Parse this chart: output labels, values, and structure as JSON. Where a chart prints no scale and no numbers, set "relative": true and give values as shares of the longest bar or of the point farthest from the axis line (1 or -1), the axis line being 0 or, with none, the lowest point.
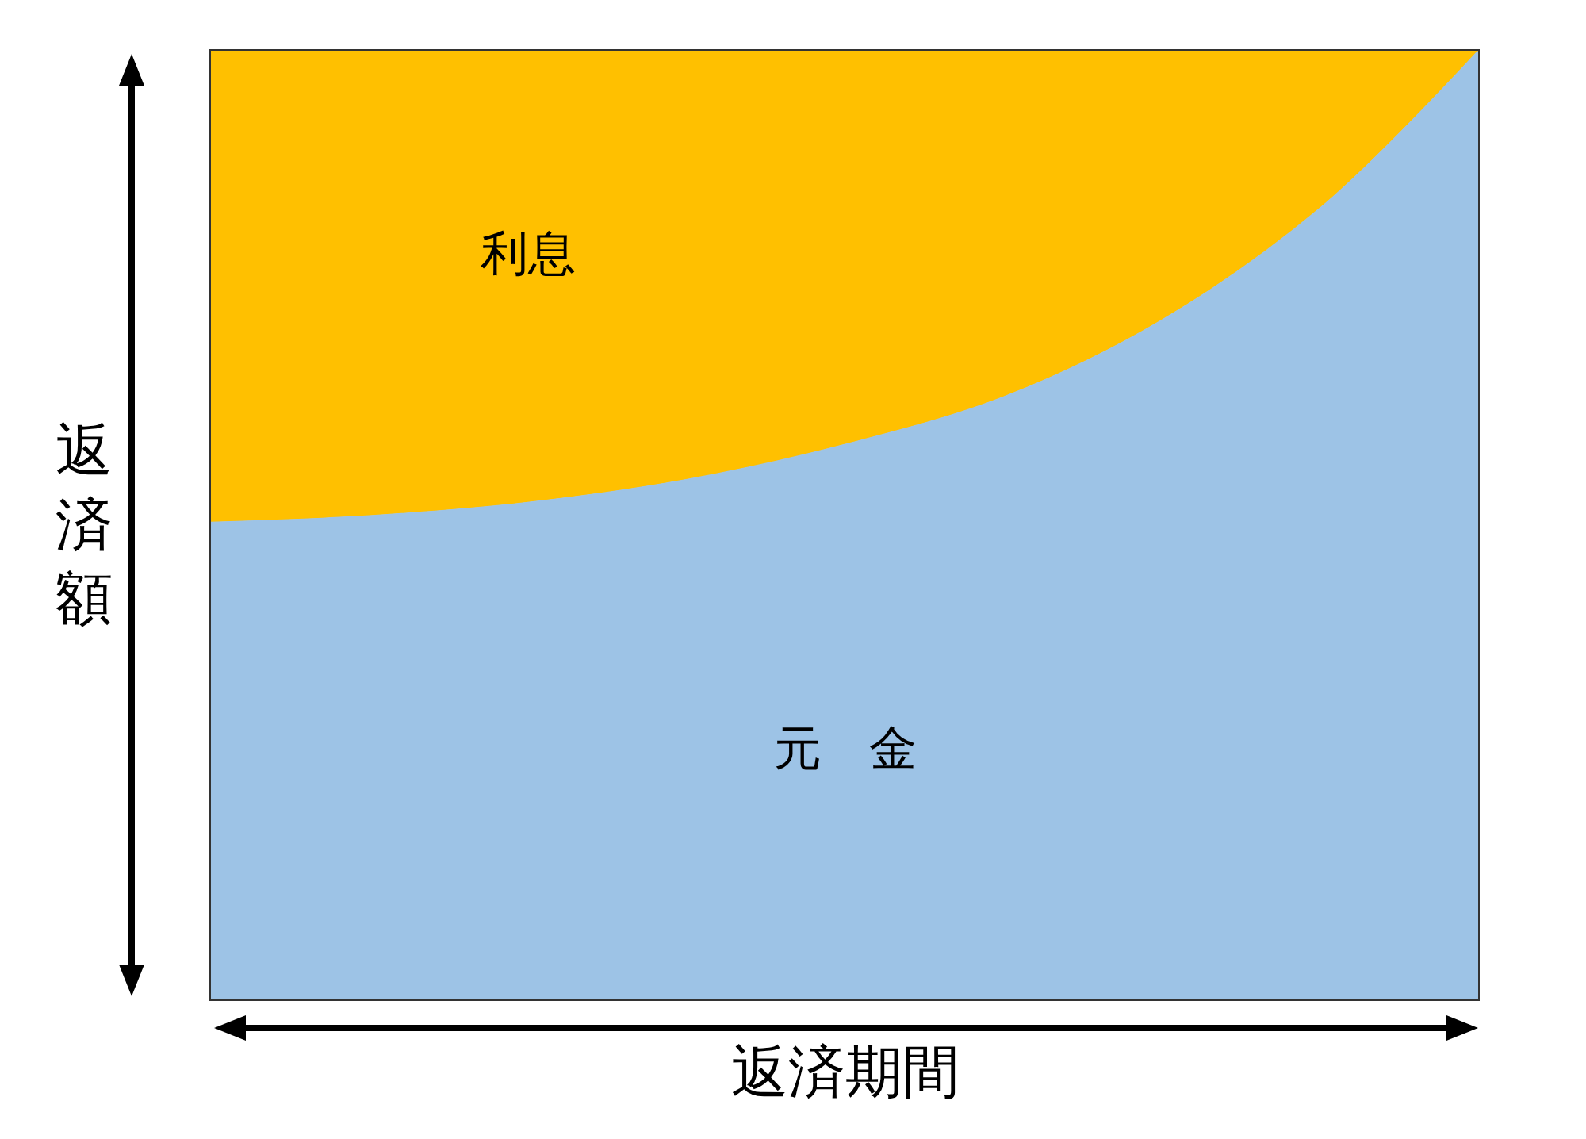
{
  "chart_data": {
    "type": "area",
    "stacked": true,
    "relative": true,
    "legend": false,
    "xlabel": "返済期間",
    "ylabel": "返済額",
    "categories": [
      null,
      null,
      null,
      null,
      null,
      null,
      null,
      null,
      null
    ],
    "series": [
      {
        "name": "元　金",
        "color": "#9dc3e6",
        "values": [
          0.503,
          0.51,
          0.524,
          0.548,
          0.585,
          0.635,
          0.716,
          0.834,
          1.0
        ]
      },
      {
        "name": "利息",
        "color": "#ffc000",
        "values": [
          0.497,
          0.49,
          0.476,
          0.452,
          0.415,
          0.365,
          0.284,
          0.166,
          0.0
        ]
      }
    ]
  }
}
